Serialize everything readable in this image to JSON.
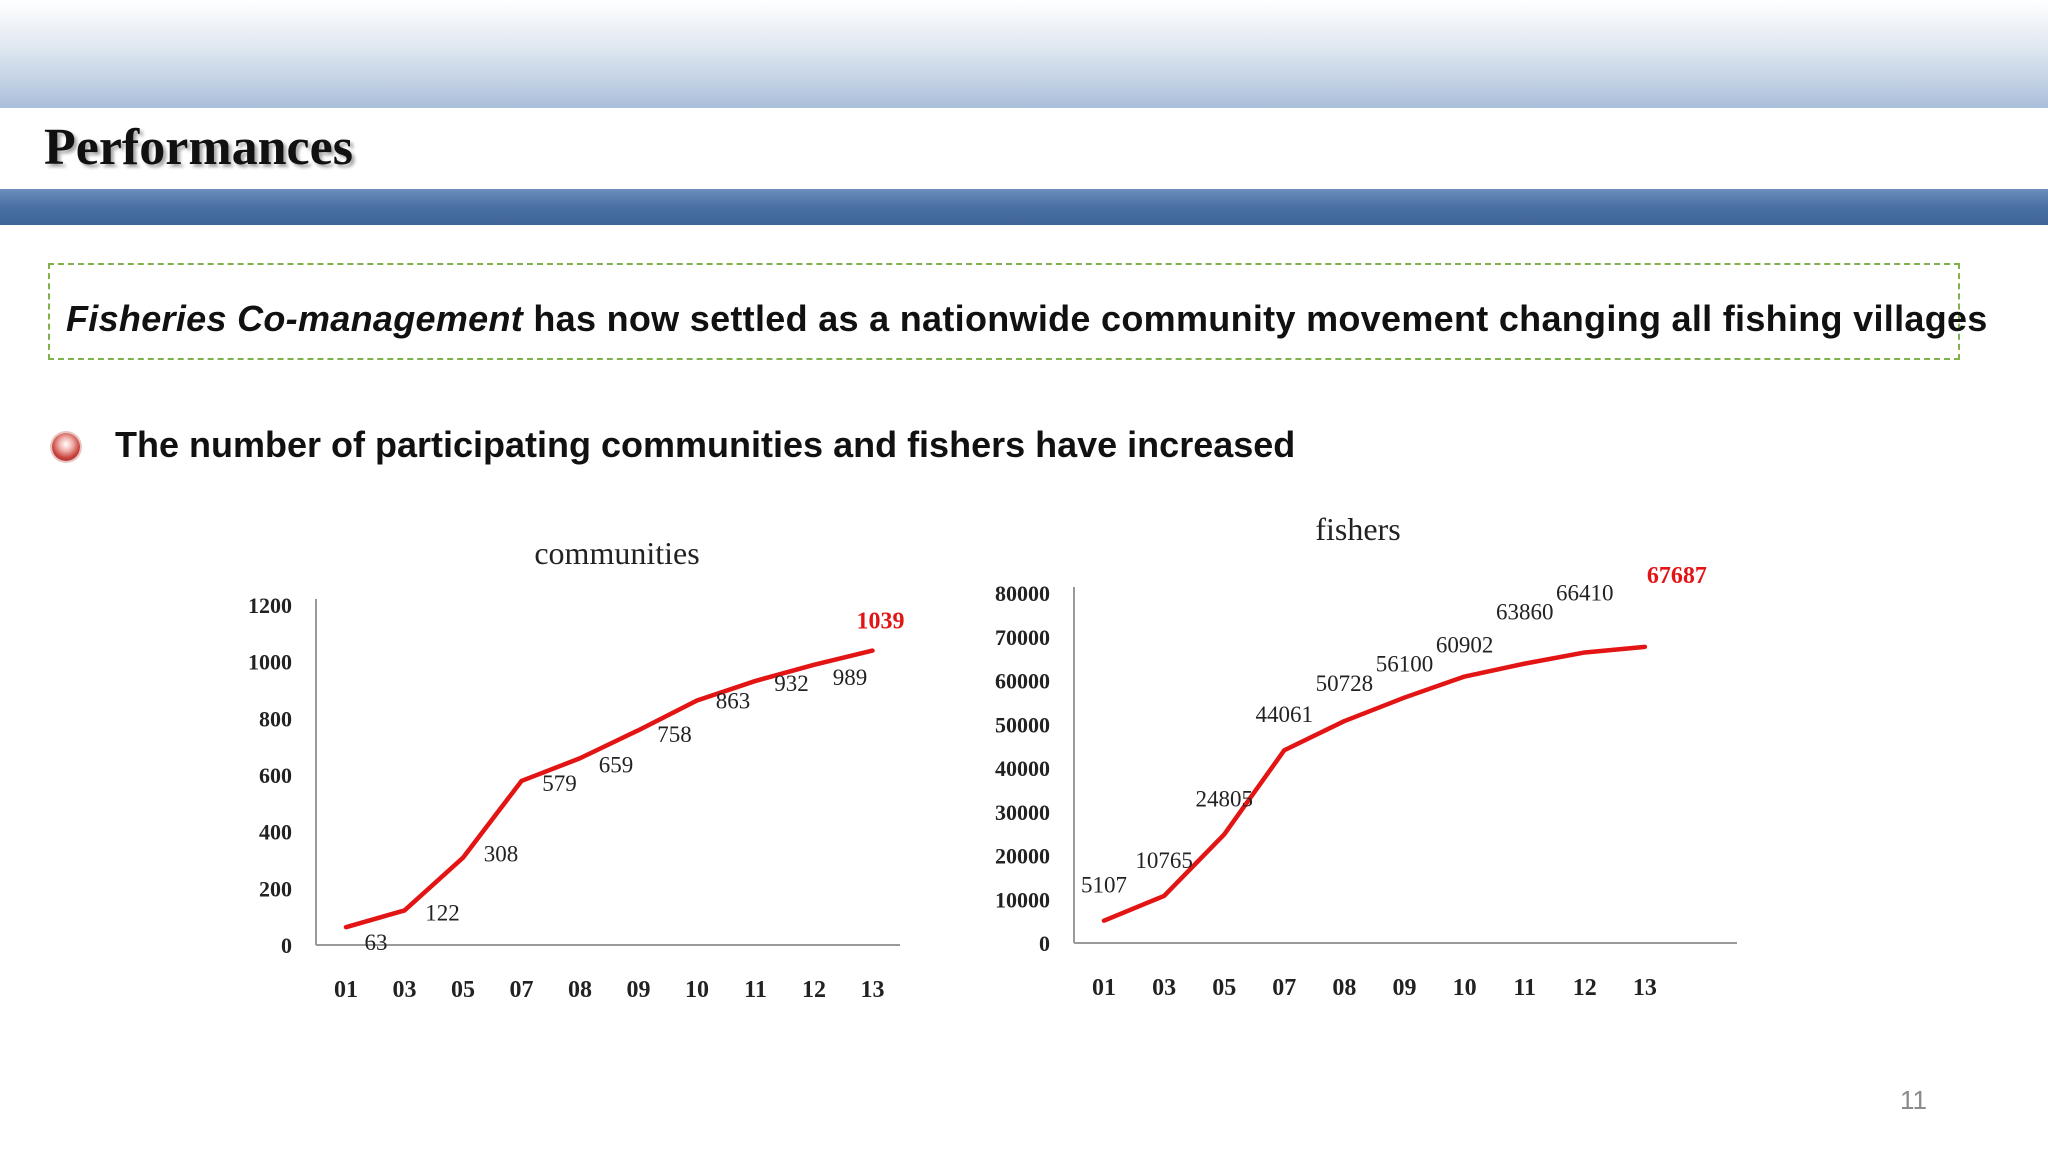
{
  "slide": {
    "title": "Performances",
    "callout": {
      "italic_part": "Fisheries Co-management",
      "rest": " has now settled as a nationwide community movement changing all fishing villages"
    },
    "bullet": "The number of participating communities and fishers have increased",
    "page_number": "11"
  },
  "colors": {
    "line": "#e31414",
    "highlight_label": "#e31414",
    "axis": "#9a9a9a",
    "top_bar": "#4a70a3",
    "callout_border": "#7fb24a"
  },
  "chart_data": [
    {
      "type": "line",
      "title": "communities",
      "categories": [
        "01",
        "03",
        "05",
        "07",
        "08",
        "09",
        "10",
        "11",
        "12",
        "13"
      ],
      "values": [
        63,
        122,
        308,
        579,
        659,
        758,
        863,
        932,
        989,
        1039
      ],
      "labels": [
        "63",
        "122",
        "308",
        "579",
        "659",
        "758",
        "863",
        "932",
        "989",
        "1039"
      ],
      "highlight_last": true,
      "ylim": [
        0,
        1200
      ],
      "yticks": [
        "0",
        "200",
        "400",
        "600",
        "800",
        "1000",
        "1200"
      ],
      "xlabel": "",
      "ylabel": ""
    },
    {
      "type": "line",
      "title": "fishers",
      "categories": [
        "01",
        "03",
        "05",
        "07",
        "08",
        "09",
        "10",
        "11",
        "12",
        "13"
      ],
      "values": [
        5107,
        10765,
        24805,
        44061,
        50728,
        56100,
        60902,
        63860,
        66410,
        67687
      ],
      "labels": [
        "5107",
        "10765",
        "24805",
        "44061",
        "50728",
        "56100",
        "60902",
        "63860",
        "66410",
        "67687"
      ],
      "highlight_last": true,
      "ylim": [
        0,
        80000
      ],
      "yticks": [
        "0",
        "10000",
        "20000",
        "30000",
        "40000",
        "50000",
        "60000",
        "70000",
        "80000"
      ],
      "xlabel": "",
      "ylabel": ""
    }
  ]
}
